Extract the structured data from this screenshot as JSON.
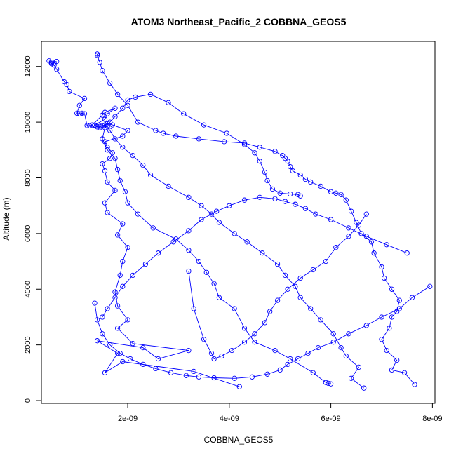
{
  "chart_data": {
    "type": "line",
    "title": "ATOM3 Northeast_Pacific_2 COBBNA_GEOS5",
    "xlabel": "COBBNA_GEOS5",
    "ylabel": "Altitude (m)",
    "xlim": [
      3e-10,
      8.05e-09
    ],
    "ylim": [
      -100,
      12900
    ],
    "x_ticks": [
      {
        "value": 2e-09,
        "label": "2e-09"
      },
      {
        "value": 4e-09,
        "label": "4e-09"
      },
      {
        "value": 6e-09,
        "label": "6e-09"
      },
      {
        "value": 8e-09,
        "label": "8e-09"
      }
    ],
    "y_ticks": [
      {
        "value": 0,
        "label": "0"
      },
      {
        "value": 2000,
        "label": "2000"
      },
      {
        "value": 4000,
        "label": "4000"
      },
      {
        "value": 6000,
        "label": "6000"
      },
      {
        "value": 8000,
        "label": "8000"
      },
      {
        "value": 10000,
        "label": "10000"
      },
      {
        "value": 12000,
        "label": "12000"
      }
    ],
    "grid": false,
    "legend": "none",
    "marker": "open-circle",
    "color": "#0000ff",
    "series": [
      {
        "x": [
          4.2e-09,
          3.3e-09,
          1.9e-09,
          1.55e-09,
          1.8e-09,
          1.4e-09,
          2.3e-09,
          2.6e-09,
          3.2e-09,
          2.1e-09,
          1.8e-09,
          2e-09,
          1.8e-09,
          1.75e-09,
          1.85e-09,
          1.9e-09,
          2e-09,
          1.8e-09,
          1.9e-09,
          1.6e-09,
          1.55e-09,
          1.75e-09,
          1.6e-09,
          1.55e-09,
          1.5e-09,
          1.65e-09,
          1.7e-09,
          1.6e-09,
          1.55e-09,
          1.9e-09,
          2e-09,
          1.7e-09,
          1.6e-09,
          1.55e-09,
          1.5e-09,
          1.6e-09,
          1.45e-09,
          1.4e-09,
          1.45e-09,
          1.35e-09,
          1.35e-09,
          1.55e-09,
          1.6e-09,
          1.75e-09,
          1.55e-09,
          1.5e-09,
          1.3e-09,
          1.25e-09,
          1.2e-09,
          1.15e-09,
          1.1e-09,
          1.05e-09,
          1e-09,
          1.05e-09,
          1.15e-09,
          8.5e-10,
          8e-10,
          7.5e-10,
          6e-10,
          5.5e-10,
          5e-10,
          4.5e-10,
          5e-10,
          5.5e-10,
          6e-10
        ],
        "y": [
          500,
          1050,
          1400,
          1000,
          1700,
          2150,
          1900,
          1500,
          1800,
          2050,
          2600,
          2900,
          3400,
          3900,
          4500,
          5000,
          5500,
          5950,
          6350,
          6750,
          7100,
          7550,
          7850,
          8250,
          8500,
          8700,
          8900,
          9100,
          9300,
          9500,
          9700,
          9900,
          9950,
          9900,
          9880,
          9870,
          9850,
          9830,
          9800,
          9880,
          9900,
          10100,
          10300,
          10500,
          10350,
          10250,
          9900,
          9870,
          9880,
          10300,
          10320,
          10300,
          10320,
          10600,
          10850,
          11100,
          11350,
          11450,
          11900,
          12050,
          12100,
          12200,
          12150,
          12120,
          12180
        ]
      },
      {
        "x": [
          7.65e-09,
          7.45e-09,
          7.2e-09,
          7.3e-09,
          7.1e-09,
          7e-09,
          7.15e-09,
          7.2e-09,
          7.3e-09,
          7.35e-09,
          7.2e-09,
          7.05e-09,
          7e-09,
          6.85e-09,
          6.8e-09,
          6.6e-09,
          6.5e-09,
          6.4e-09,
          6.3e-09,
          6.2e-09,
          6.1e-09,
          6e-09,
          5.8e-09,
          5.6e-09,
          5.5e-09,
          5.4e-09,
          5.25e-09,
          5.2e-09,
          5.15e-09,
          5.1e-09,
          5.05e-09,
          4.9e-09,
          4.6e-09,
          4.3e-09,
          3.9e-09,
          3.4e-09,
          2.95e-09,
          2.7e-09,
          2.55e-09,
          2.2e-09,
          2e-09,
          1.8e-09,
          1.65e-09,
          1.5e-09,
          1.45e-09,
          1.4e-09,
          1.4e-09
        ],
        "y": [
          580,
          1000,
          1100,
          1450,
          1800,
          2200,
          2600,
          3000,
          3200,
          3600,
          4000,
          4400,
          4800,
          5300,
          5700,
          6000,
          6400,
          6800,
          7200,
          7400,
          7450,
          7500,
          7700,
          7850,
          7950,
          8100,
          8250,
          8400,
          8600,
          8700,
          8800,
          8950,
          9100,
          9250,
          9300,
          9400,
          9500,
          9600,
          9700,
          10000,
          10600,
          11000,
          11400,
          11850,
          12150,
          12400,
          12450
        ]
      },
      {
        "x": [
          6e-09,
          5.95e-09,
          5.9e-09,
          5.65e-09,
          5.2e-09,
          4.9e-09,
          4.5e-09,
          4.3e-09,
          4.1e-09,
          3.8e-09,
          3.7e-09,
          3.55e-09,
          3.4e-09,
          3.2e-09,
          2.95e-09,
          2.5e-09,
          2.2e-09,
          2e-09,
          1.95e-09,
          1.85e-09,
          1.8e-09,
          1.75e-09,
          1.6e-09,
          1.5e-09,
          1.55e-09,
          1.65e-09,
          1.75e-09,
          1.9e-09,
          2e-09,
          2.15e-09,
          2.45e-09,
          2.8e-09,
          3.1e-09,
          3.5e-09,
          3.95e-09,
          4.3e-09,
          4.5e-09,
          4.6e-09,
          4.7e-09,
          4.75e-09,
          4.85e-09,
          5e-09,
          5.2e-09,
          5.35e-09,
          5.4e-09
        ],
        "y": [
          600,
          620,
          650,
          1000,
          1500,
          1800,
          2100,
          2600,
          3300,
          3700,
          4200,
          4600,
          5000,
          5400,
          5800,
          6200,
          6700,
          7100,
          7500,
          7900,
          8300,
          8700,
          9000,
          9400,
          9800,
          10000,
          10200,
          10500,
          10800,
          10900,
          11000,
          10700,
          10300,
          9900,
          9600,
          9200,
          8900,
          8600,
          8200,
          7900,
          7600,
          7450,
          7420,
          7400,
          7350
        ]
      },
      {
        "x": [
          6.65e-09,
          6.4e-09,
          6.55e-09,
          6.3e-09,
          6.2e-09,
          6.05e-09,
          5.8e-09,
          5.6e-09,
          5.4e-09,
          5.3e-09,
          5.1e-09,
          4.95e-09,
          4.65e-09,
          4.35e-09,
          4.1e-09,
          3.8e-09,
          3.65e-09,
          3.45e-09,
          3.2e-09,
          2.8e-09,
          2.45e-09,
          2.3e-09,
          2.1e-09,
          1.9e-09,
          1.75e-09,
          1.65e-09,
          1.6e-09
        ],
        "y": [
          450,
          800,
          1200,
          1600,
          1900,
          2400,
          2900,
          3300,
          3700,
          4100,
          4500,
          4900,
          5300,
          5700,
          6000,
          6400,
          6700,
          7000,
          7300,
          7700,
          8100,
          8450,
          8800,
          9100,
          9400,
          9700,
          9850
        ]
      },
      {
        "x": [
          7.95e-09,
          7.6e-09,
          7.35e-09,
          7e-09,
          6.7e-09,
          6.35e-09,
          6.05e-09,
          5.75e-09,
          5.55e-09,
          5.35e-09,
          5.15e-09,
          5e-09,
          4.75e-09,
          4.45e-09,
          4.1e-09,
          3.7e-09,
          3.4e-09,
          3.15e-09,
          2.85e-09,
          2.55e-09,
          2.3e-09,
          2.05e-09,
          1.85e-09,
          1.65e-09,
          1.5e-09,
          1.4e-09,
          1.35e-09
        ],
        "y": [
          4100,
          3700,
          3300,
          3000,
          2700,
          2400,
          2100,
          1900,
          1700,
          1500,
          1300,
          1100,
          950,
          850,
          800,
          820,
          850,
          900,
          1000,
          1150,
          1300,
          1500,
          1700,
          2000,
          2400,
          2900,
          3500
        ]
      },
      {
        "x": [
          7.5e-09,
          7.1e-09,
          6.7e-09,
          6.35e-09,
          6e-09,
          5.7e-09,
          5.5e-09,
          5.3e-09,
          5.1e-09,
          4.9e-09,
          4.6e-09,
          4.3e-09,
          4e-09,
          3.75e-09,
          3.45e-09,
          3.2e-09,
          2.9e-09,
          2.6e-09,
          2.35e-09,
          2.1e-09,
          1.9e-09,
          1.75e-09,
          1.6e-09,
          1.5e-09
        ],
        "y": [
          5300,
          5600,
          5900,
          6200,
          6500,
          6700,
          6900,
          7050,
          7150,
          7250,
          7300,
          7200,
          7000,
          6800,
          6500,
          6100,
          5700,
          5300,
          4900,
          4500,
          4100,
          3700,
          3300,
          3000
        ]
      },
      {
        "x": [
          6.7e-09,
          6.55e-09,
          6.35e-09,
          6.1e-09,
          5.9e-09,
          5.65e-09,
          5.4e-09,
          5.15e-09,
          4.95e-09,
          4.8e-09,
          4.7e-09,
          4.5e-09,
          4.3e-09,
          4.05e-09,
          3.85e-09,
          3.7e-09,
          3.65e-09,
          3.5e-09,
          3.3e-09,
          3.2e-09
        ],
        "y": [
          6700,
          6300,
          5900,
          5500,
          5000,
          4700,
          4400,
          4000,
          3600,
          3200,
          2800,
          2400,
          2100,
          1800,
          1600,
          1500,
          1700,
          2200,
          3300,
          4650
        ]
      }
    ]
  }
}
